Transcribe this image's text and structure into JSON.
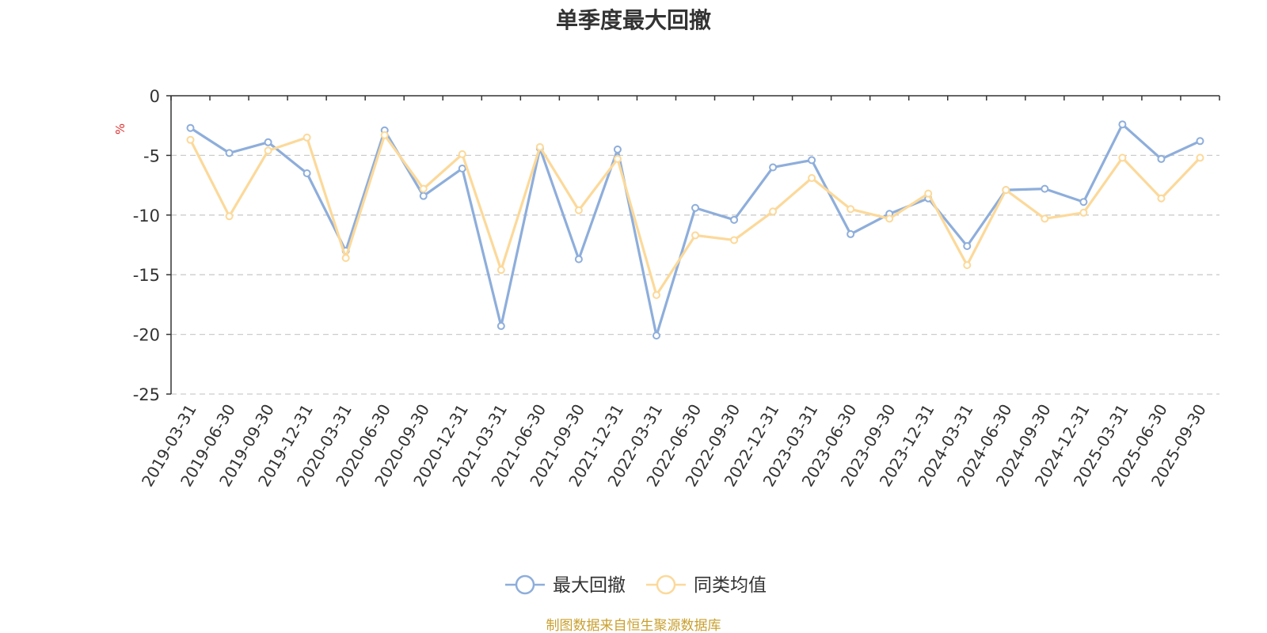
{
  "chart_data": {
    "type": "line",
    "title": "单季度最大回撤",
    "ylabel": "%",
    "xlabel": "",
    "ylim": [
      -25,
      0
    ],
    "yticks": [
      0,
      -5,
      -10,
      -15,
      -20,
      -25
    ],
    "grid": true,
    "legend_position": "bottom-center",
    "categories": [
      "2019-03-31",
      "2019-06-30",
      "2019-09-30",
      "2019-12-31",
      "2020-03-31",
      "2020-06-30",
      "2020-09-30",
      "2020-12-31",
      "2021-03-31",
      "2021-06-30",
      "2021-09-30",
      "2021-12-31",
      "2022-03-31",
      "2022-06-30",
      "2022-09-30",
      "2022-12-31",
      "2023-03-31",
      "2023-06-30",
      "2023-09-30",
      "2023-12-31",
      "2024-03-31",
      "2024-06-30",
      "2024-09-30",
      "2024-12-31",
      "2025-03-31",
      "2025-06-30",
      "2025-09-30"
    ],
    "series": [
      {
        "name": "最大回撤",
        "color": "#8eaedb",
        "values": [
          -2.7,
          -4.8,
          -3.9,
          -6.5,
          -13.0,
          -2.9,
          -8.4,
          -6.1,
          -19.3,
          -4.4,
          -13.7,
          -4.5,
          -20.1,
          -9.4,
          -10.4,
          -6.0,
          -5.4,
          -11.6,
          -9.9,
          -8.6,
          -12.6,
          -7.9,
          -7.8,
          -8.9,
          -2.4,
          -5.3,
          -3.8
        ]
      },
      {
        "name": "同类均值",
        "color": "#fcd99a",
        "values": [
          -3.7,
          -10.1,
          -4.6,
          -3.5,
          -13.6,
          -3.3,
          -7.8,
          -4.9,
          -14.6,
          -4.3,
          -9.6,
          -5.3,
          -16.7,
          -11.7,
          -12.1,
          -9.7,
          -6.9,
          -9.5,
          -10.3,
          -8.2,
          -14.2,
          -7.9,
          -10.3,
          -9.8,
          -5.2,
          -8.6,
          -5.2
        ]
      }
    ]
  },
  "source_note": "制图数据来自恒生聚源数据库"
}
